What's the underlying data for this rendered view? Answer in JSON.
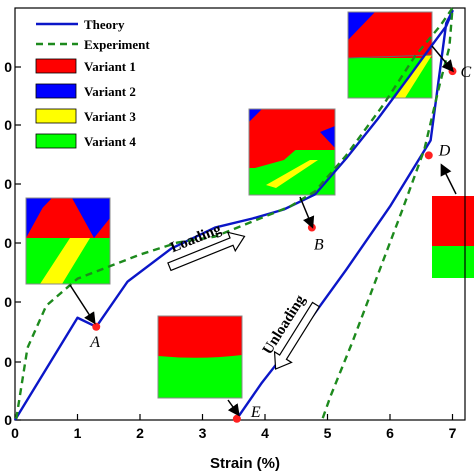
{
  "chart_data": {
    "type": "line",
    "xlabel": "Strain (%)",
    "ylabel": "",
    "xlim": [
      0,
      7.2
    ],
    "ylim": [
      0,
      6.85
    ],
    "x_ticks": [
      "0",
      "1",
      "2",
      "3",
      "4",
      "5",
      "6",
      "7"
    ],
    "y_ticks": [
      "0",
      "0",
      "0",
      "0",
      "0",
      "0",
      "0"
    ],
    "legend_position": "top-left",
    "series": [
      {
        "name": "Theory",
        "color": "#0b16c8",
        "style": "solid",
        "x": [
          0,
          0.5,
          1.0,
          1.3,
          1.8,
          2.5,
          3.2,
          3.8,
          4.3,
          4.8,
          5.3,
          5.8,
          6.3,
          6.65,
          6.9,
          7.0,
          6.9,
          6.65,
          6.0,
          5.3,
          4.5,
          3.95,
          3.55
        ],
        "y": [
          0,
          0.85,
          1.7,
          1.55,
          2.3,
          2.85,
          3.2,
          3.35,
          3.5,
          3.75,
          4.35,
          5.0,
          5.7,
          6.2,
          6.55,
          6.8,
          6.6,
          4.65,
          3.55,
          2.5,
          1.35,
          0.62,
          0.02
        ]
      },
      {
        "name": "Experiment",
        "color": "#1d8a1d",
        "style": "dashed",
        "x": [
          0.02,
          0.2,
          0.5,
          1.0,
          1.5,
          2.0,
          2.6,
          3.2,
          3.8,
          4.4,
          4.8,
          5.3,
          5.9,
          6.4,
          6.8,
          7.0,
          6.95,
          6.8,
          6.55,
          6.2,
          5.8,
          5.4,
          5.05,
          4.92
        ],
        "y": [
          0.02,
          1.2,
          1.9,
          2.35,
          2.55,
          2.75,
          2.95,
          3.05,
          3.3,
          3.55,
          3.8,
          4.4,
          5.25,
          6.05,
          6.55,
          6.85,
          6.2,
          5.6,
          4.5,
          3.5,
          2.4,
          1.3,
          0.4,
          0.02
        ]
      }
    ],
    "markers": [
      {
        "label": "A",
        "x": 1.3,
        "y": 1.55
      },
      {
        "label": "B",
        "x": 4.75,
        "y": 3.2
      },
      {
        "label": "C",
        "x": 7.0,
        "y": 5.8
      },
      {
        "label": "D",
        "x": 6.62,
        "y": 4.4
      },
      {
        "label": "E",
        "x": 3.55,
        "y": 0.02
      }
    ],
    "annotations": [
      "Loading",
      "Unloading"
    ],
    "microstructure_legend": [
      {
        "name": "Variant 1",
        "color": "#ff0000"
      },
      {
        "name": "Variant 2",
        "color": "#0000ff"
      },
      {
        "name": "Variant 3",
        "color": "#ffff00"
      },
      {
        "name": "Variant 4",
        "color": "#00ff00"
      }
    ]
  }
}
